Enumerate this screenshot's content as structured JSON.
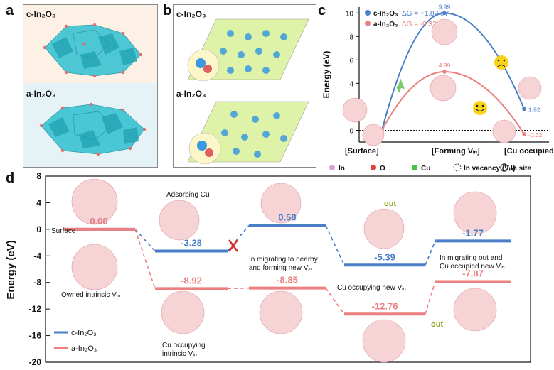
{
  "panels": {
    "a": "a",
    "b": "b",
    "c": "c",
    "d": "d"
  },
  "panel_a": {
    "top_label": "c-In₂O₃",
    "bottom_label": "a-In₂O₃"
  },
  "panel_b": {
    "top_label": "c-In₂O₃",
    "bottom_label": "a-In₂O₃"
  },
  "colors": {
    "c_series": "#4a7fc8",
    "a_series": "#ec7f7f",
    "panel_a_top_bg": "#fdf1e6",
    "panel_a_bottom_bg": "#e6f3f6",
    "structure": "#39c3d1"
  },
  "legend_atoms": [
    {
      "label": "In",
      "symbol": "circle",
      "color": "#d9a3d6"
    },
    {
      "label": "O",
      "symbol": "circle",
      "color": "#e0433b"
    },
    {
      "label": "Cu",
      "symbol": "circle",
      "color": "#4cc040"
    },
    {
      "label": "In vacancy (Vᵢₙ)",
      "symbol": "dashed-circle",
      "color": "#333333"
    },
    {
      "label": "In site",
      "symbol": "ring",
      "color": "#333333"
    }
  ],
  "chart_data": [
    {
      "type": "line",
      "ylabel": "Energy (eV)",
      "ylim": [
        -1,
        10.5
      ],
      "yticks": [
        0,
        2,
        4,
        6,
        8,
        10
      ],
      "x_categories": [
        "[Surface]",
        "[Forming Vᵢₙ]",
        "[Cu occupied Vᵢₙ]"
      ],
      "legend_position": "top-left",
      "series": [
        {
          "name": "c-In₂O₃",
          "delta_label": "ΔG = +1.82 eV",
          "color": "#4a7fc8",
          "values": [
            0,
            9.99,
            1.82
          ],
          "labels": [
            "",
            "9.99",
            "1.82"
          ]
        },
        {
          "name": "a-In₂O₃",
          "delta_label": "ΔG = -0.32 eV",
          "color": "#ec7f7f",
          "values": [
            0,
            4.99,
            -0.32
          ],
          "labels": [
            "",
            "4.99",
            "-0.32"
          ]
        }
      ]
    },
    {
      "type": "line",
      "ylabel": "Energy (eV)",
      "ylim": [
        -20,
        8
      ],
      "yticks": [
        8,
        4,
        0,
        -4,
        -8,
        -12,
        -16,
        -20
      ],
      "categories": [
        "Surface",
        "Adsorbing Cu",
        "In migrating / forming new Vᵢₙ",
        "Cu occupying new Vᵢₙ",
        "In migrating out / Cu occupied new Vᵢₙ"
      ],
      "legend_position": "bottom-left",
      "series": [
        {
          "name": "c-In₂O₃",
          "color": "#4a7fc8",
          "values": [
            0.0,
            -3.28,
            0.58,
            -5.39,
            -1.77
          ],
          "labels": [
            "0.00",
            "-3.28",
            "0.58",
            "-5.39",
            "-1.77"
          ]
        },
        {
          "name": "a-In₂O₃",
          "color": "#ec7f7f",
          "values": [
            0.0,
            -8.92,
            -8.85,
            -12.76,
            -7.87
          ],
          "labels": [
            "0.00",
            "-8.92",
            "-8.85",
            "-12.76",
            "-7.87"
          ]
        }
      ],
      "annotations": {
        "surface": "Surface",
        "adsorbing": "Adsorbing Cu",
        "migrating_line1": "In migrating to nearby",
        "migrating_line2": "and forming new Vᵢₙ",
        "cu_occupying_new": "Cu occupying new Vᵢₙ",
        "out_line1": "In migrating out and",
        "out_line2": "Cu occupied new Vᵢₙ",
        "owned": "Owned intrinsic Vᵢₙ",
        "cu_intrinsic_line1": "Cu occupying",
        "cu_intrinsic_line2": "intrinsic Vᵢₙ",
        "out_top": "out",
        "out_bottom": "out"
      }
    }
  ]
}
